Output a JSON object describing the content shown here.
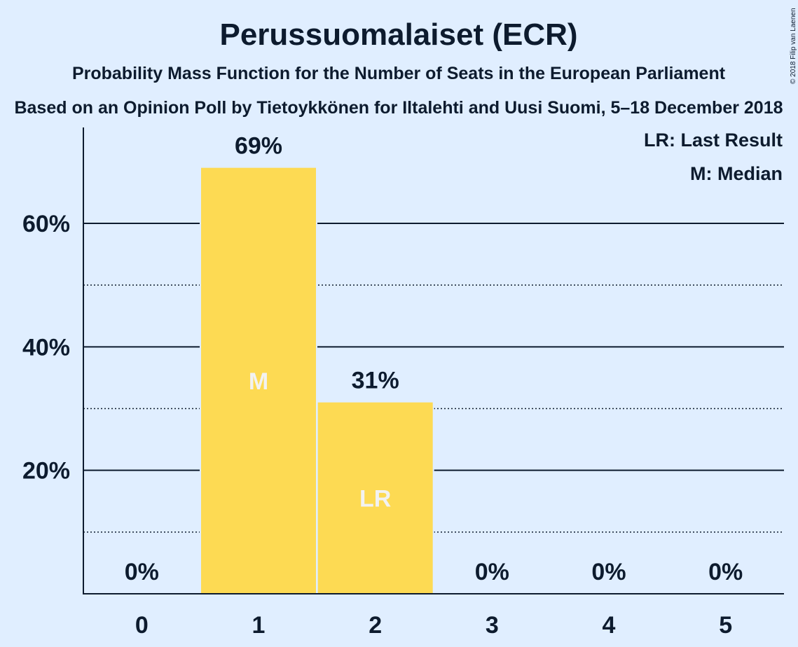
{
  "chart_data": {
    "type": "bar",
    "title": "Perussuomalaiset (ECR)",
    "subtitle": "Probability Mass Function for the Number of Seats in the European Parliament",
    "subtitle2": "Based on an Opinion Poll by Tietoykkönen for Iltalehti and Uusi Suomi, 5–18 December 2018",
    "copyright": "© 2018 Filip van Laenen",
    "categories": [
      "0",
      "1",
      "2",
      "3",
      "4",
      "5"
    ],
    "values": [
      0,
      69,
      31,
      0,
      0,
      0
    ],
    "value_labels": [
      "0%",
      "69%",
      "31%",
      "0%",
      "0%",
      "0%"
    ],
    "bar_markers": [
      "",
      "M",
      "LR",
      "",
      "",
      ""
    ],
    "ylim": [
      0,
      75
    ],
    "yticks": [
      {
        "value": 20,
        "label": "20%"
      },
      {
        "value": 40,
        "label": "40%"
      },
      {
        "value": 60,
        "label": "60%"
      }
    ],
    "minor_gridlines": [
      10,
      30,
      50
    ],
    "legend": {
      "placement": "top-right",
      "entries": [
        "LR: Last Result",
        "M: Median"
      ]
    },
    "colors": {
      "background": "#e0eeff",
      "bar": "#fdda53",
      "text": "#0d1b2e",
      "marker_text": "#f2f2f2"
    }
  }
}
